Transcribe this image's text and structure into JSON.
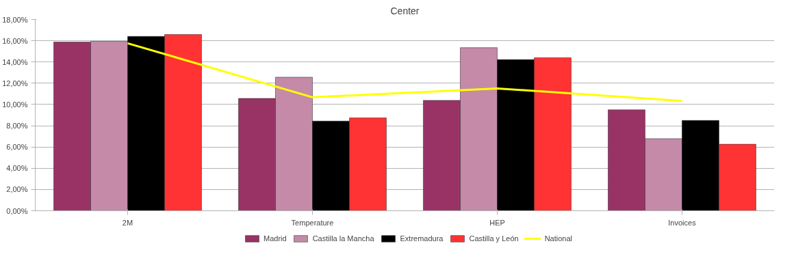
{
  "chart_data": {
    "type": "bar",
    "title": "Center",
    "categories": [
      "2M",
      "Temperature",
      "HEP",
      "Invoices"
    ],
    "series": [
      {
        "name": "Madrid",
        "color": "#993366",
        "values": [
          15.88,
          10.57,
          10.39,
          9.5
        ]
      },
      {
        "name": "Castilla la Mancha",
        "color": "#c48aa8",
        "values": [
          15.94,
          12.57,
          15.35,
          6.79
        ]
      },
      {
        "name": "Extremadura",
        "color": "#000000",
        "values": [
          16.41,
          8.44,
          14.23,
          8.5
        ]
      },
      {
        "name": "Castilla y León",
        "color": "#ff3333",
        "values": [
          16.59,
          8.74,
          14.4,
          6.26
        ]
      },
      {
        "name": "National",
        "type": "line",
        "color": "#ffff00",
        "values": [
          15.76,
          10.68,
          11.51,
          10.33
        ]
      }
    ],
    "ylim": [
      0,
      18
    ],
    "yticks": [
      {
        "value": 0,
        "label": "0,00%"
      },
      {
        "value": 2,
        "label": "2,00%"
      },
      {
        "value": 4,
        "label": "4,00%"
      },
      {
        "value": 6,
        "label": "6,00%"
      },
      {
        "value": 8,
        "label": "8,00%"
      },
      {
        "value": 10,
        "label": "10,00%"
      },
      {
        "value": 12,
        "label": "12,00%"
      },
      {
        "value": 14,
        "label": "14,00%"
      },
      {
        "value": 16,
        "label": "16,00%"
      },
      {
        "value": 18,
        "label": "18,00%"
      }
    ],
    "grid": "y",
    "legend": "bottom"
  }
}
